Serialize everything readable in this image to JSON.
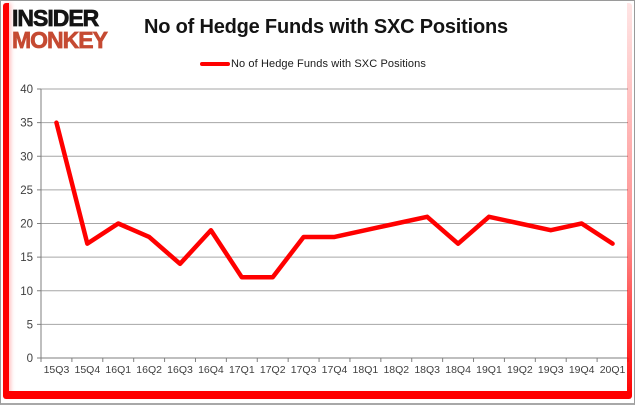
{
  "logo": {
    "line1": "INSIDER",
    "line2": "MONKEY"
  },
  "header": {
    "title": "No of Hedge Funds with SXC Positions"
  },
  "legend": {
    "label": "No of Hedge Funds with SXC Positions"
  },
  "chart_data": {
    "type": "line",
    "title": "No of Hedge Funds with SXC Positions",
    "series_name": "No of Hedge Funds with SXC Positions",
    "categories": [
      "15Q3",
      "15Q4",
      "16Q1",
      "16Q2",
      "16Q3",
      "16Q4",
      "17Q1",
      "17Q2",
      "17Q3",
      "17Q4",
      "18Q1",
      "18Q2",
      "18Q3",
      "18Q4",
      "19Q1",
      "19Q2",
      "19Q3",
      "19Q4",
      "20Q1"
    ],
    "values": [
      35,
      17,
      20,
      18,
      14,
      19,
      12,
      12,
      18,
      18,
      19,
      20,
      21,
      17,
      21,
      20,
      19,
      20,
      17
    ],
    "xlabel": "",
    "ylabel": "",
    "ylim": [
      0,
      40
    ],
    "yticks": [
      0,
      5,
      10,
      15,
      20,
      25,
      30,
      35,
      40
    ],
    "grid": true,
    "legend_position": "top",
    "line_color": "#ff0000"
  },
  "colors": {
    "accent_red": "#ff0000",
    "logo_red": "#c54a32",
    "gridline": "#a6a6a6",
    "axis": "#7f7f7f",
    "axis_text": "#3f3f3f",
    "title_text": "#141414",
    "background": "#ffffff"
  }
}
